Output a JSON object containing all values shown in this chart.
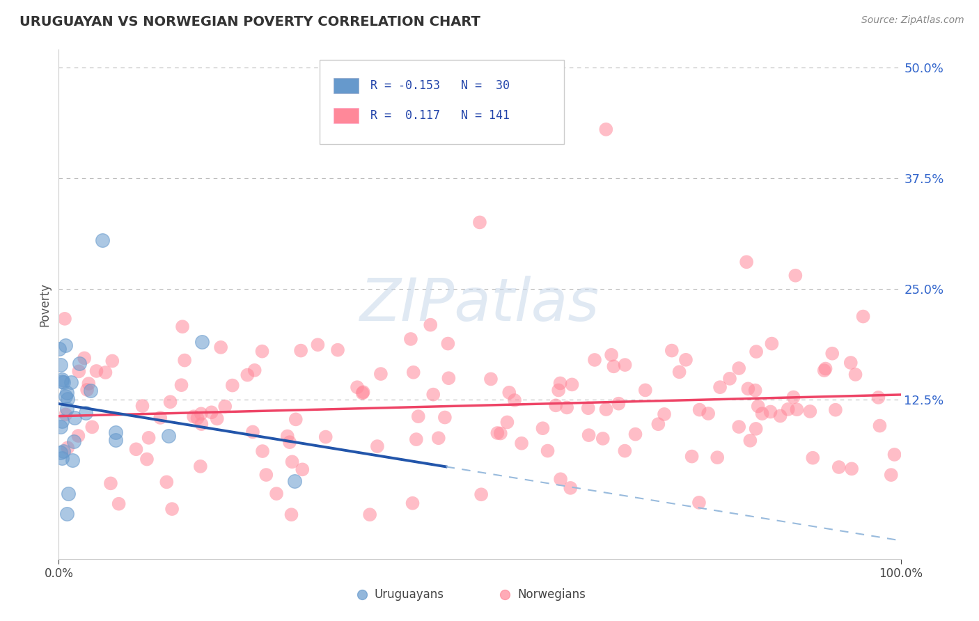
{
  "title": "URUGUAYAN VS NORWEGIAN POVERTY CORRELATION CHART",
  "source": "Source: ZipAtlas.com",
  "ylabel": "Poverty",
  "xlim": [
    0,
    1
  ],
  "ylim": [
    -0.055,
    0.52
  ],
  "yticks": [
    0.125,
    0.25,
    0.375,
    0.5
  ],
  "ytick_labels": [
    "12.5%",
    "25.0%",
    "37.5%",
    "50.0%"
  ],
  "xticks": [
    0.0,
    1.0
  ],
  "xtick_labels": [
    "0.0%",
    "100.0%"
  ],
  "uruguayan_R": -0.153,
  "uruguayan_N": 30,
  "norwegian_R": 0.117,
  "norwegian_N": 141,
  "blue_color": "#6699cc",
  "pink_color": "#ff8899",
  "trend_blue": "#2255aa",
  "trend_pink": "#ee4466",
  "dash_blue": "#99bbdd",
  "watermark": "ZIPatlas",
  "background_color": "#ffffff",
  "grid_color": "#bbbbbb",
  "title_color": "#333333",
  "source_color": "#888888",
  "ylabel_color": "#555555",
  "tick_color": "#3366cc",
  "xtick_color": "#444444",
  "legend_text_color": "#2244aa"
}
